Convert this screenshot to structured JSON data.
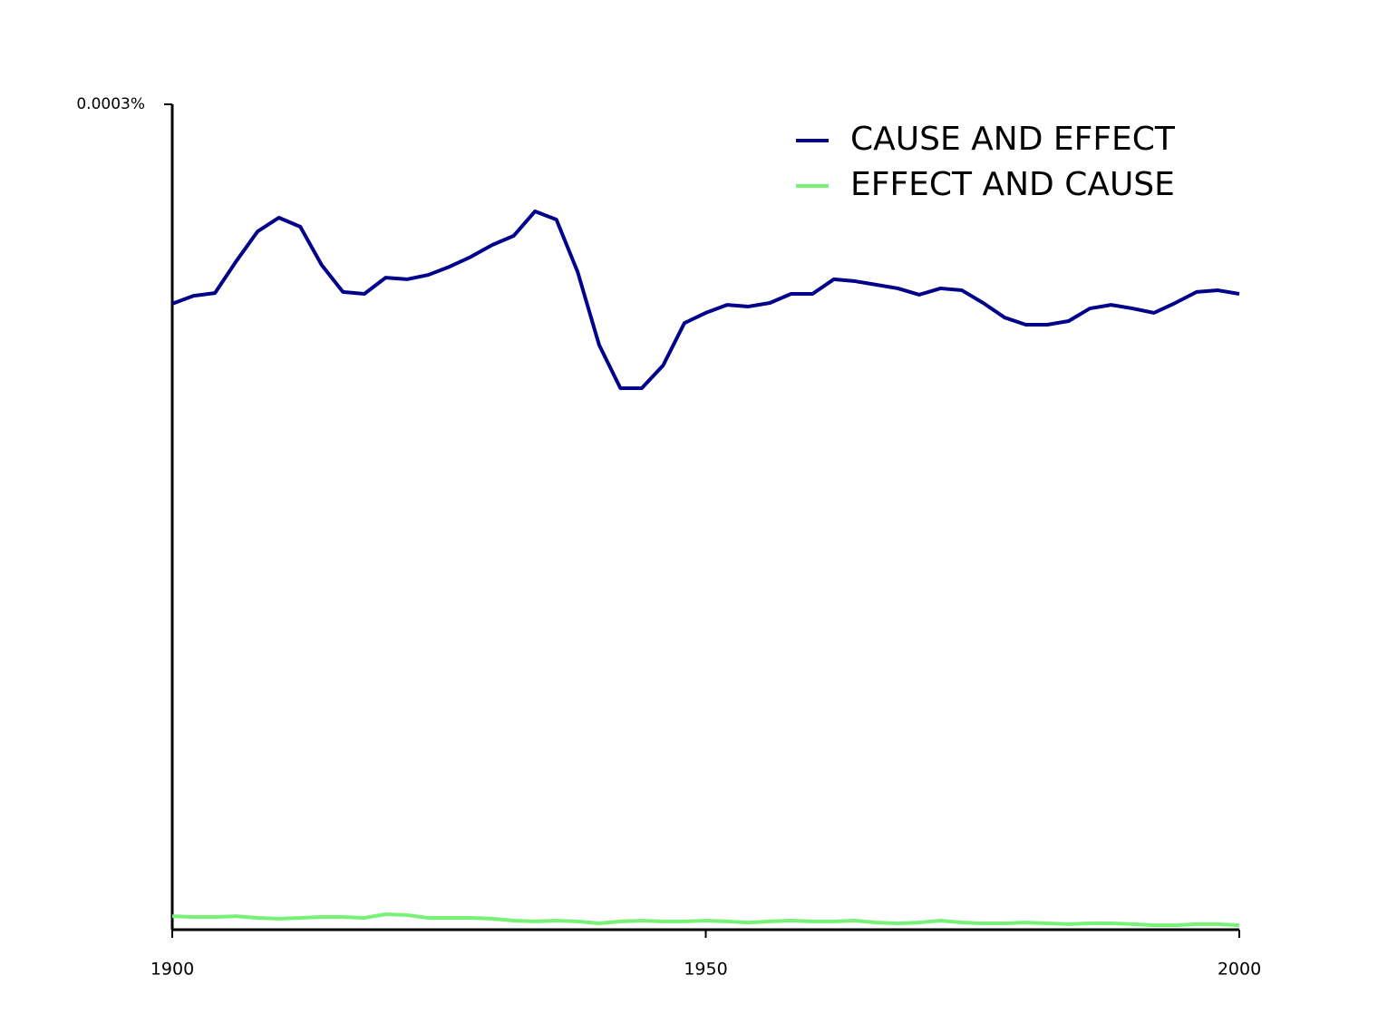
{
  "chart_data": {
    "type": "line",
    "x": [
      1900,
      1902,
      1904,
      1906,
      1908,
      1910,
      1912,
      1914,
      1916,
      1918,
      1920,
      1922,
      1924,
      1926,
      1928,
      1930,
      1932,
      1934,
      1936,
      1938,
      1940,
      1942,
      1944,
      1946,
      1948,
      1950,
      1952,
      1954,
      1956,
      1958,
      1960,
      1962,
      1964,
      1966,
      1968,
      1970,
      1972,
      1974,
      1976,
      1978,
      1980,
      1982,
      1984,
      1986,
      1988,
      1990,
      1992,
      1994,
      1996,
      1998,
      2000
    ],
    "series": [
      {
        "name": "CAUSE AND EFFECT",
        "color": "#00008b",
        "values": [
          0.0002275,
          0.0002304,
          0.0002314,
          0.000243,
          0.0002538,
          0.0002588,
          0.0002555,
          0.0002416,
          0.0002318,
          0.0002311,
          0.000237,
          0.0002364,
          0.000238,
          0.000241,
          0.0002446,
          0.0002489,
          0.0002522,
          0.0002611,
          0.0002581,
          0.000239,
          0.0002126,
          0.0001968,
          0.0001968,
          0.0002051,
          0.0002205,
          0.0002242,
          0.0002271,
          0.0002265,
          0.0002278,
          0.0002311,
          0.0002311,
          0.0002364,
          0.0002357,
          0.0002344,
          0.0002331,
          0.0002308,
          0.0002331,
          0.0002324,
          0.0002278,
          0.0002225,
          0.0002199,
          0.0002199,
          0.0002212,
          0.0002258,
          0.0002271,
          0.0002258,
          0.0002242,
          0.0002278,
          0.0002318,
          0.0002324,
          0.0002311
        ]
      },
      {
        "name": "EFFECT AND CAUSE",
        "color": "#77f277",
        "values": [
          4.9e-06,
          4.6e-06,
          4.6e-06,
          4.9e-06,
          4.3e-06,
          4e-06,
          4.3e-06,
          4.6e-06,
          4.6e-06,
          4.3e-06,
          5.6e-06,
          5.3e-06,
          4.3e-06,
          4.3e-06,
          4.3e-06,
          4e-06,
          3.3e-06,
          3e-06,
          3.3e-06,
          3e-06,
          2.3e-06,
          3e-06,
          3.3e-06,
          3e-06,
          3e-06,
          3.3e-06,
          3e-06,
          2.6e-06,
          3e-06,
          3.3e-06,
          3e-06,
          3e-06,
          3.3e-06,
          2.6e-06,
          2.3e-06,
          2.6e-06,
          3.3e-06,
          2.6e-06,
          2.3e-06,
          2.3e-06,
          2.6e-06,
          2.3e-06,
          2e-06,
          2.3e-06,
          2.3e-06,
          2e-06,
          1.6e-06,
          1.6e-06,
          2e-06,
          2e-06,
          1.6e-06
        ]
      }
    ],
    "xlim": [
      1900,
      2000
    ],
    "xticks": [
      1900,
      1950,
      2000
    ],
    "ylim": [
      0,
      0.0003
    ],
    "yticks": [
      {
        "value": 0.0003,
        "label": "0.0003%"
      }
    ],
    "legend": "upper right"
  }
}
